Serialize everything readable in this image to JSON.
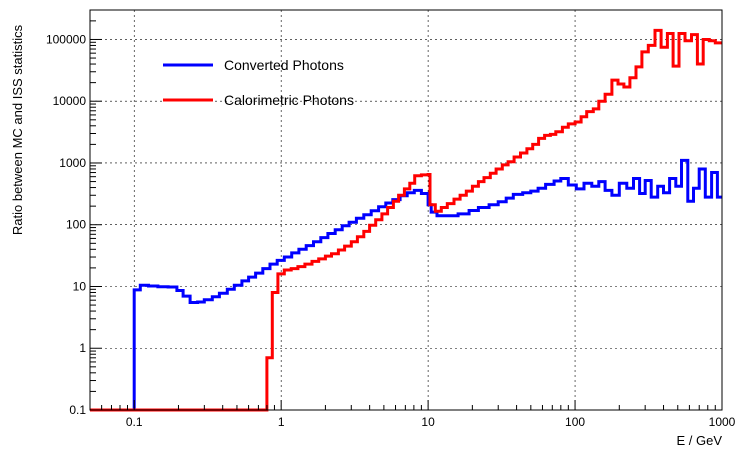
{
  "chart_data": {
    "type": "line",
    "title": "",
    "xlabel": "E / GeV",
    "ylabel": "Ratio between MC and ISS statistics",
    "x_scale": "log",
    "y_scale": "log",
    "xlim": [
      0.05,
      1000
    ],
    "ylim": [
      0.1,
      300000
    ],
    "grid": true,
    "legend_position": "top-left",
    "x_ticks": [
      {
        "value": 0.1,
        "label": "0.1"
      },
      {
        "value": 1,
        "label": "1"
      },
      {
        "value": 10,
        "label": "10"
      },
      {
        "value": 100,
        "label": "100"
      },
      {
        "value": 1000,
        "label": "1000"
      }
    ],
    "y_ticks": [
      {
        "value": 0.1,
        "label": "0.1"
      },
      {
        "value": 1,
        "label": "1"
      },
      {
        "value": 10,
        "label": "10"
      },
      {
        "value": 100,
        "label": "100"
      },
      {
        "value": 1000,
        "label": "1000"
      },
      {
        "value": 10000,
        "label": "10000"
      },
      {
        "value": 100000,
        "label": "100000"
      }
    ],
    "series": [
      {
        "name": "Converted Photons",
        "color": "#0000ff",
        "style": "step",
        "points": [
          [
            0.05,
            0.1
          ],
          [
            0.1,
            0.1
          ],
          [
            0.1,
            8.8
          ],
          [
            0.11,
            10.5
          ],
          [
            0.125,
            10.2
          ],
          [
            0.145,
            9.9
          ],
          [
            0.17,
            9.8
          ],
          [
            0.195,
            8.6
          ],
          [
            0.215,
            7.0
          ],
          [
            0.24,
            5.5
          ],
          [
            0.27,
            5.6
          ],
          [
            0.3,
            6.1
          ],
          [
            0.34,
            6.8
          ],
          [
            0.38,
            7.8
          ],
          [
            0.43,
            9.0
          ],
          [
            0.48,
            10.5
          ],
          [
            0.54,
            12.3
          ],
          [
            0.6,
            14.2
          ],
          [
            0.67,
            16.5
          ],
          [
            0.75,
            19.5
          ],
          [
            0.84,
            23.0
          ],
          [
            0.94,
            26.5
          ],
          [
            1.05,
            30.0
          ],
          [
            1.18,
            35.0
          ],
          [
            1.32,
            40.0
          ],
          [
            1.48,
            46.0
          ],
          [
            1.66,
            53.0
          ],
          [
            1.86,
            62.0
          ],
          [
            2.08,
            72.0
          ],
          [
            2.33,
            83.0
          ],
          [
            2.6,
            96.0
          ],
          [
            2.9,
            110.0
          ],
          [
            3.25,
            127.0
          ],
          [
            3.65,
            145.0
          ],
          [
            4.1,
            168.0
          ],
          [
            4.6,
            195.0
          ],
          [
            5.15,
            225.0
          ],
          [
            5.75,
            255.0
          ],
          [
            6.45,
            295.0
          ],
          [
            7.2,
            330.0
          ],
          [
            8.05,
            360.0
          ],
          [
            9.0,
            320.0
          ],
          [
            10.0,
            210.0
          ],
          [
            10.5,
            160.0
          ],
          [
            11.5,
            140.0
          ],
          [
            14.0,
            140.0
          ],
          [
            16.0,
            150.0
          ],
          [
            19.0,
            170.0
          ],
          [
            22.0,
            190.0
          ],
          [
            26.0,
            210.0
          ],
          [
            30.0,
            235.0
          ],
          [
            34.0,
            270.0
          ],
          [
            38.0,
            310.0
          ],
          [
            44.0,
            330.0
          ],
          [
            50.0,
            350.0
          ],
          [
            56.0,
            390.0
          ],
          [
            63.0,
            450.0
          ],
          [
            72.0,
            510.0
          ],
          [
            80.0,
            560.0
          ],
          [
            90.0,
            440.0
          ],
          [
            102.0,
            380.0
          ],
          [
            115.0,
            470.0
          ],
          [
            130.0,
            420.0
          ],
          [
            145.0,
            500.0
          ],
          [
            160.0,
            360.0
          ],
          [
            178.0,
            300.0
          ],
          [
            200.0,
            470.0
          ],
          [
            225.0,
            390.0
          ],
          [
            250.0,
            560.0
          ],
          [
            275.0,
            320.0
          ],
          [
            300.0,
            520.0
          ],
          [
            330.0,
            280.0
          ],
          [
            365.0,
            420.0
          ],
          [
            400.0,
            330.0
          ],
          [
            440.0,
            560.0
          ],
          [
            485.0,
            420.0
          ],
          [
            530.0,
            1100.0
          ],
          [
            585.0,
            240.0
          ],
          [
            640.0,
            390.0
          ],
          [
            700.0,
            800.0
          ],
          [
            770.0,
            280.0
          ],
          [
            850.0,
            700.0
          ],
          [
            930.0,
            280.0
          ],
          [
            1000.0,
            280.0
          ]
        ]
      },
      {
        "name": "Calorimetric Photons",
        "color": "#ff0000",
        "style": "step",
        "points": [
          [
            0.05,
            0.1
          ],
          [
            0.8,
            0.1
          ],
          [
            0.8,
            0.7
          ],
          [
            0.87,
            8.0
          ],
          [
            0.95,
            16.0
          ],
          [
            1.05,
            18.5
          ],
          [
            1.17,
            19.5
          ],
          [
            1.3,
            21.0
          ],
          [
            1.45,
            23.0
          ],
          [
            1.62,
            25.5
          ],
          [
            1.8,
            28.0
          ],
          [
            2.0,
            31.0
          ],
          [
            2.2,
            34.0
          ],
          [
            2.45,
            39.0
          ],
          [
            2.7,
            45.0
          ],
          [
            3.0,
            53.0
          ],
          [
            3.3,
            64.0
          ],
          [
            3.65,
            78.0
          ],
          [
            4.0,
            98.0
          ],
          [
            4.4,
            120.0
          ],
          [
            4.85,
            150.0
          ],
          [
            5.3,
            190.0
          ],
          [
            5.8,
            240.0
          ],
          [
            6.3,
            300.0
          ],
          [
            6.9,
            380.0
          ],
          [
            7.5,
            470.0
          ],
          [
            8.1,
            620.0
          ],
          [
            9.0,
            640.0
          ],
          [
            10.0,
            650.0
          ],
          [
            10.3,
            210.0
          ],
          [
            11.2,
            165.0
          ],
          [
            12.3,
            190.0
          ],
          [
            13.5,
            220.0
          ],
          [
            15.0,
            260.0
          ],
          [
            16.5,
            300.0
          ],
          [
            18.2,
            350.0
          ],
          [
            20.0,
            420.0
          ],
          [
            22.0,
            500.0
          ],
          [
            24.0,
            580.0
          ],
          [
            26.5,
            680.0
          ],
          [
            29.0,
            800.0
          ],
          [
            32.0,
            930.0
          ],
          [
            35.0,
            1050.0
          ],
          [
            38.5,
            1250.0
          ],
          [
            42.5,
            1450.0
          ],
          [
            47.0,
            1700.0
          ],
          [
            51.5,
            2000.0
          ],
          [
            56.5,
            2500.0
          ],
          [
            62.0,
            2800.0
          ],
          [
            68.0,
            2900.0
          ],
          [
            74.0,
            3200.0
          ],
          [
            82.0,
            3800.0
          ],
          [
            90.0,
            4300.0
          ],
          [
            100.0,
            4600.0
          ],
          [
            110.0,
            5600.0
          ],
          [
            120.0,
            6800.0
          ],
          [
            133.0,
            7500.0
          ],
          [
            145.0,
            10000.0
          ],
          [
            160.0,
            13000.0
          ],
          [
            178.0,
            22000.0
          ],
          [
            196.0,
            19000.0
          ],
          [
            215.0,
            17000.0
          ],
          [
            236.0,
            24000.0
          ],
          [
            260.0,
            36000.0
          ],
          [
            285.0,
            63000.0
          ],
          [
            315.0,
            80000.0
          ],
          [
            350.0,
            140000.0
          ],
          [
            385.0,
            75000.0
          ],
          [
            425.0,
            125000.0
          ],
          [
            465.0,
            37000.0
          ],
          [
            510.0,
            125000.0
          ],
          [
            560.0,
            95000.0
          ],
          [
            620.0,
            120000.0
          ],
          [
            680.0,
            40000.0
          ],
          [
            745.0,
            100000.0
          ],
          [
            820.0,
            95000.0
          ],
          [
            900.0,
            88000.0
          ],
          [
            1000.0,
            88000.0
          ]
        ]
      }
    ]
  }
}
